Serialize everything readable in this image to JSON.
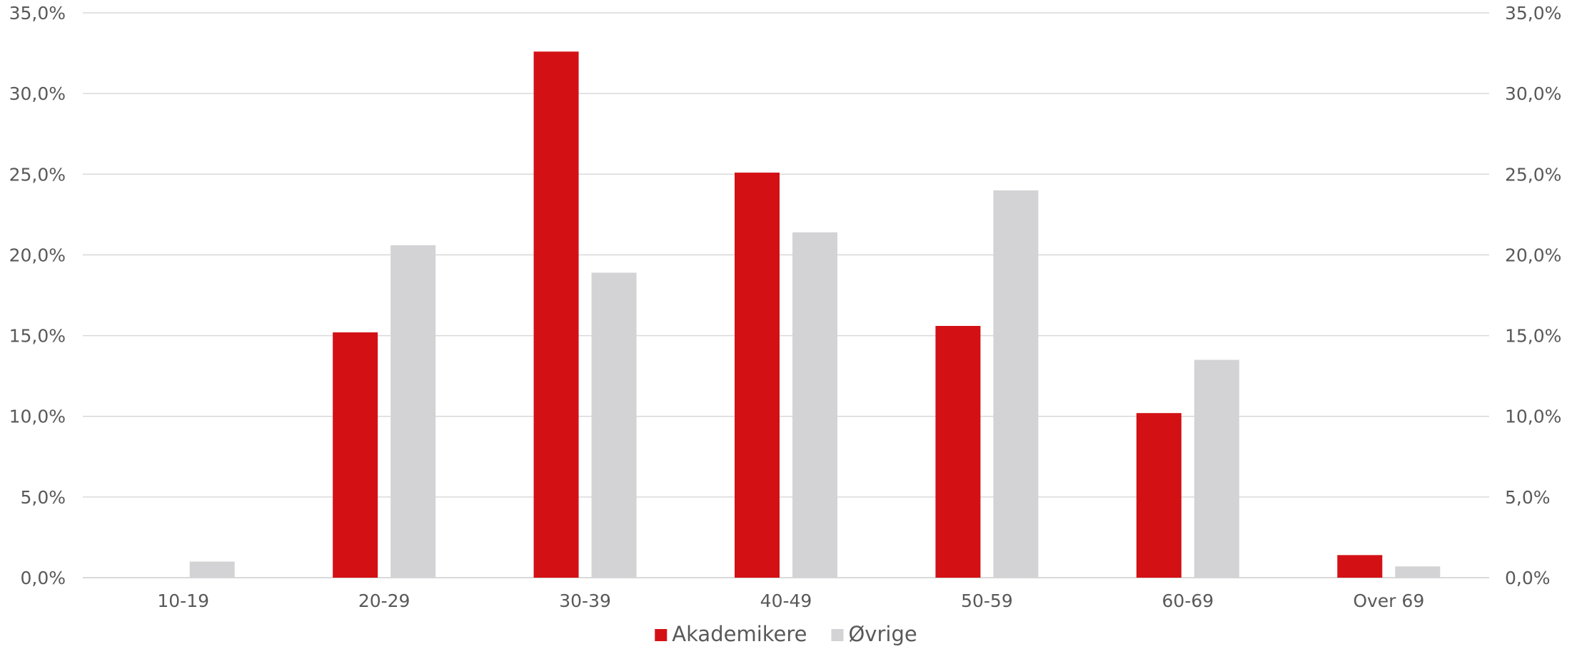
{
  "chart_data": {
    "type": "bar",
    "title": "",
    "xlabel": "",
    "ylabel": "",
    "categories": [
      "10-19",
      "20-29",
      "30-39",
      "40-49",
      "50-59",
      "60-69",
      "Over 69"
    ],
    "series": [
      {
        "name": "Akademikere",
        "color": "#D31115",
        "values": [
          0.0,
          15.2,
          32.6,
          25.1,
          15.6,
          10.2,
          1.4
        ]
      },
      {
        "name": "Øvrige",
        "color": "#D3D3D6",
        "values": [
          1.0,
          20.6,
          18.9,
          21.4,
          24.0,
          13.5,
          0.7
        ]
      }
    ],
    "ylim": [
      0,
      35
    ],
    "y_ticks": [
      0,
      5,
      10,
      15,
      20,
      25,
      30,
      35
    ],
    "y_tick_labels": [
      "0,0%",
      "5,0%",
      "10,0%",
      "15,0%",
      "20,0%",
      "25,0%",
      "30,0%",
      "35,0%"
    ],
    "secondary_axis": true,
    "grid": true,
    "legend_position": "bottom-center",
    "gridline_color": "#D9D9D9",
    "axis_text_color": "#595959"
  }
}
